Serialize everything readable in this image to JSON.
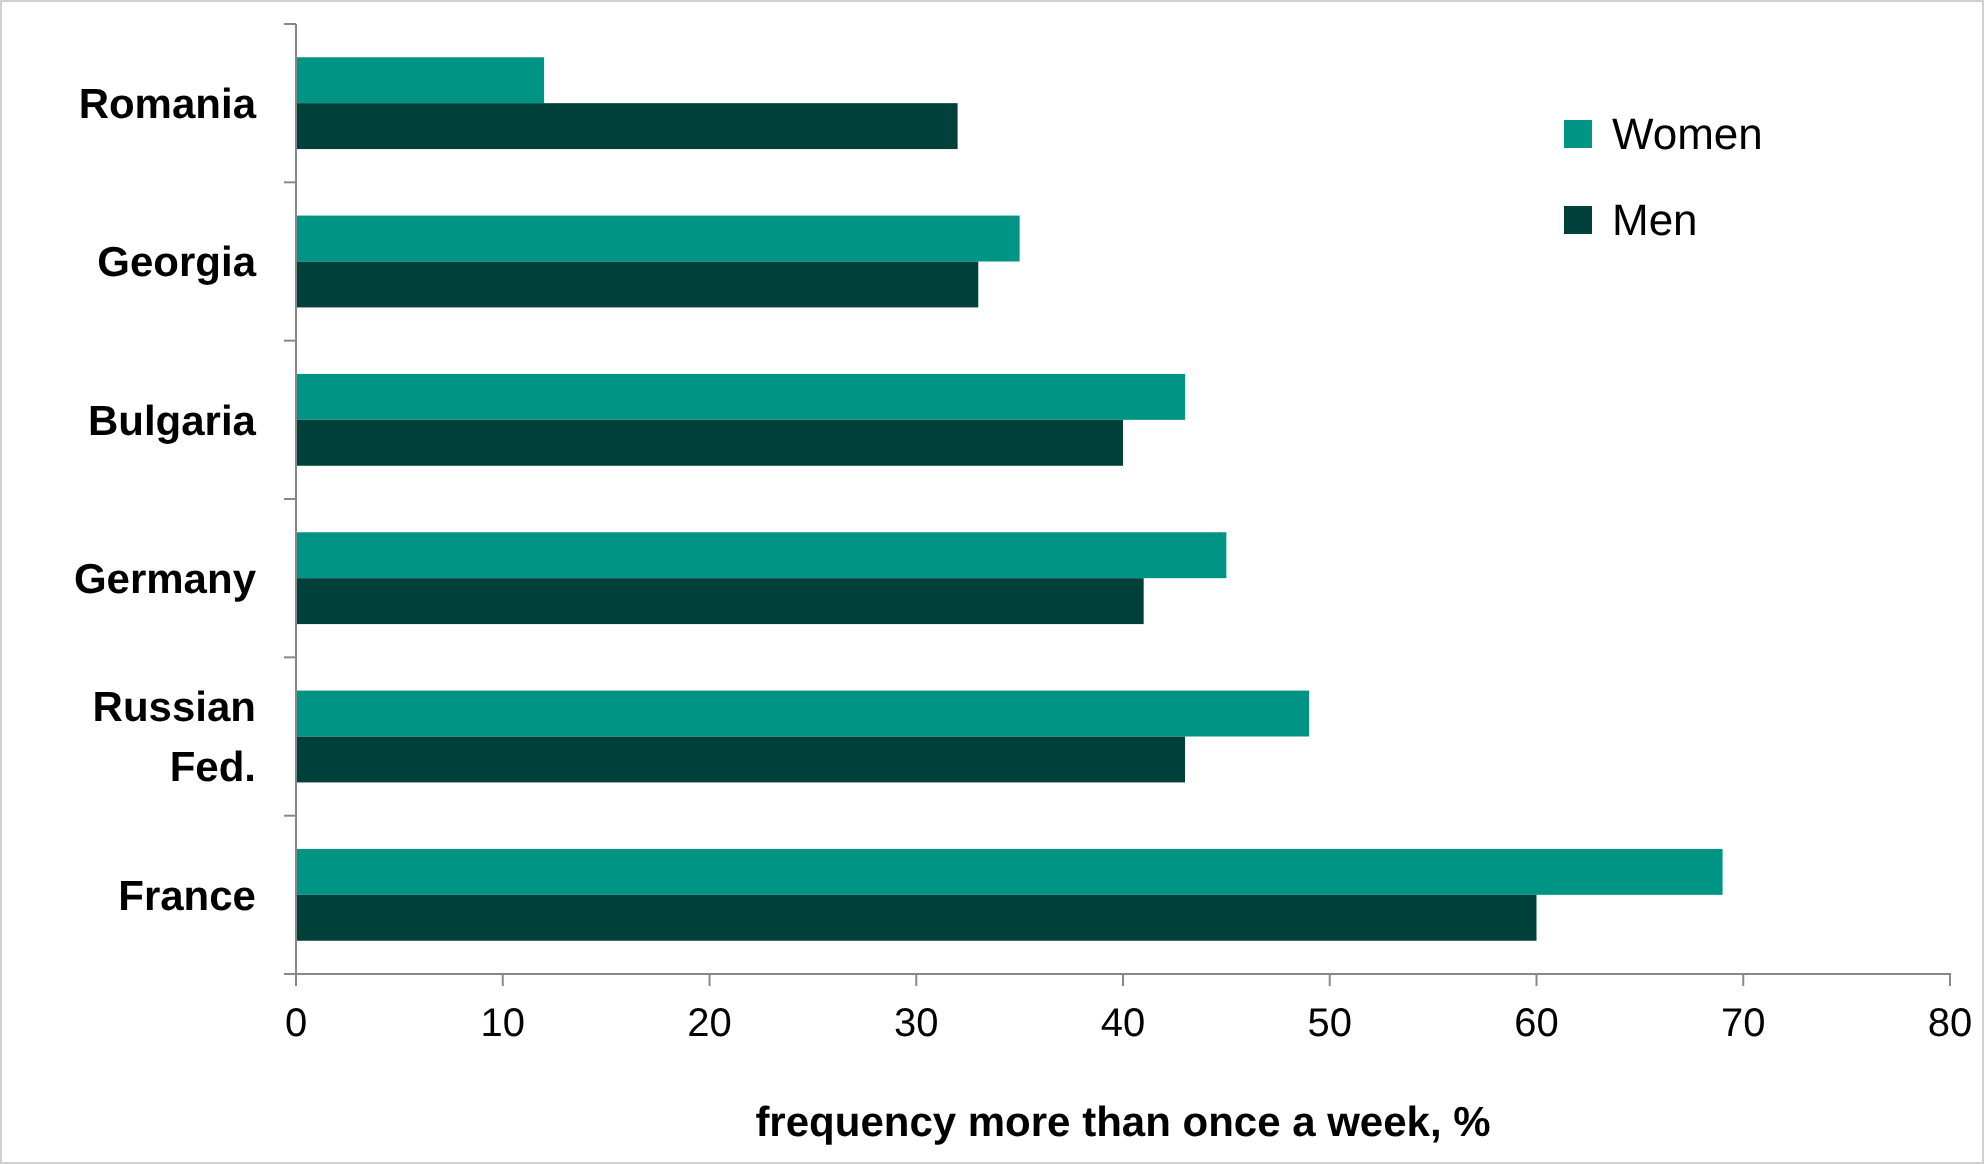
{
  "chart_data": {
    "type": "bar",
    "orientation": "horizontal",
    "xlabel": "frequency more than once a week, %",
    "categories": [
      "Romania",
      "Georgia",
      "Bulgaria",
      "Germany",
      "Russian Fed.",
      "France"
    ],
    "series": [
      {
        "name": "Women",
        "color": "#009485",
        "values": [
          12,
          35,
          43,
          45,
          49,
          69
        ]
      },
      {
        "name": "Men",
        "color": "#00403a",
        "values": [
          32,
          33,
          40,
          41,
          43,
          60
        ]
      }
    ],
    "xlim": [
      0,
      80
    ],
    "xticks": [
      0,
      10,
      20,
      30,
      40,
      50,
      60,
      70,
      80
    ],
    "grid": false,
    "legend": "top right"
  }
}
